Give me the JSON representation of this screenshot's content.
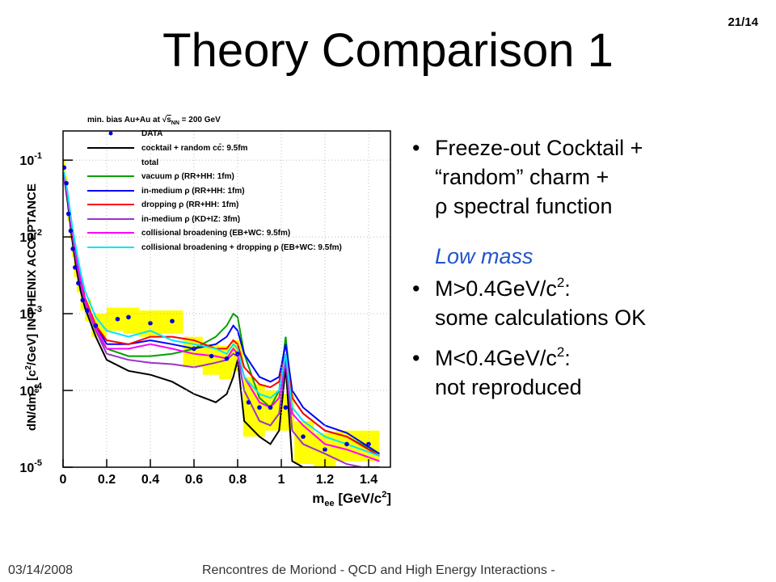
{
  "page": {
    "title": "Theory Comparison 1",
    "page_number": "21/14",
    "bullets": [
      {
        "lines": [
          [
            "Freeze-out Cocktail +"
          ],
          [
            "“random” charm +"
          ],
          [
            "ρ spectral function"
          ]
        ]
      },
      {
        "lines": [
          [
            "M>0.4GeV/c",
            "2",
            ":"
          ],
          [
            "some calculations OK"
          ]
        ]
      },
      {
        "lines": [
          [
            "M<0.4GeV/c",
            "2",
            ":"
          ],
          [
            "not reproduced"
          ]
        ]
      }
    ],
    "subheading": "Low mass",
    "footer": {
      "date": "03/14/2008",
      "event": "Rencontres de Moriond - QCD and High Energy Interactions -"
    }
  },
  "chart_data": {
    "type": "line",
    "log_y": true,
    "grid": true,
    "legend_header": [
      "min. bias Au+Au at ",
      "√",
      "s",
      "NN",
      " = 200 GeV"
    ],
    "ylabel": [
      "dN/dm",
      "ee",
      " [c",
      "2",
      "/GeV] IN PHENIX ACCEPTANCE"
    ],
    "xlabel": [
      "m",
      "ee",
      " [GeV/c",
      "2",
      "]"
    ],
    "xlim": [
      0,
      1.5
    ],
    "xticks": [
      0,
      0.2,
      0.4,
      0.6,
      0.8,
      1,
      1.2,
      1.4
    ],
    "ylim": [
      1e-05,
      0.24
    ],
    "yticks": [
      {
        "value": 1e-05,
        "label": "10",
        "exponent": "-5"
      },
      {
        "value": 0.0001,
        "label": "10",
        "exponent": "-4"
      },
      {
        "value": 0.001,
        "label": "10",
        "exponent": "-3"
      },
      {
        "value": 0.01,
        "label": "10",
        "exponent": "-2"
      },
      {
        "value": 0.1,
        "label": "10",
        "exponent": "-1"
      }
    ],
    "x": [
      0.005,
      0.02,
      0.04,
      0.06,
      0.08,
      0.1,
      0.15,
      0.2,
      0.3,
      0.4,
      0.5,
      0.6,
      0.7,
      0.75,
      0.78,
      0.8,
      0.83,
      0.9,
      0.95,
      0.99,
      1.02,
      1.05,
      1.1,
      1.2,
      1.3,
      1.45
    ],
    "series": [
      {
        "name": "DATA",
        "type": "scatter",
        "color": "#0000dd",
        "x": [
          0.005,
          0.015,
          0.025,
          0.035,
          0.045,
          0.055,
          0.07,
          0.09,
          0.11,
          0.15,
          0.25,
          0.3,
          0.4,
          0.5,
          0.6,
          0.68,
          0.75,
          0.8,
          0.85,
          0.9,
          0.95,
          1.02,
          1.1,
          1.2,
          1.3,
          1.4
        ],
        "values": [
          0.08,
          0.05,
          0.02,
          0.012,
          0.007,
          0.004,
          0.0025,
          0.0015,
          0.0011,
          0.0007,
          0.00085,
          0.0009,
          0.00075,
          0.0008,
          0.00035,
          0.00028,
          0.00026,
          0.0003,
          7e-05,
          6e-05,
          6e-05,
          6e-05,
          2.5e-05,
          1.7e-05,
          2e-05,
          2e-05
        ],
        "sys": {
          "name": "total",
          "color": "#ffff00",
          "low": [
            0.065,
            0.04,
            0.016,
            0.0095,
            0.0055,
            0.003,
            0.0019,
            0.0011,
            0.0008,
            0.0005,
            0.0006,
            0.00055,
            0.0005,
            0.00055,
            0.0002,
            0.00016,
            0.00014,
            0.00018,
            2.5e-05,
            2.5e-05,
            3e-05,
            3e-05,
            1.1e-05,
            1e-05,
            1.2e-05,
            1.2e-05
          ],
          "high": [
            0.1,
            0.062,
            0.025,
            0.015,
            0.009,
            0.0052,
            0.0033,
            0.002,
            0.0015,
            0.001,
            0.0012,
            0.0012,
            0.0011,
            0.0011,
            0.0005,
            0.0004,
            0.00038,
            0.00045,
            0.00015,
            0.00012,
            0.0001,
            9e-05,
            4e-05,
            2.8e-05,
            3e-05,
            3e-05
          ]
        }
      },
      {
        "name": "cocktail + random cc̄: 9.5fm",
        "color": "#000000",
        "values": [
          0.06,
          0.03,
          0.01,
          0.004,
          0.002,
          0.0012,
          0.0005,
          0.00025,
          0.00018,
          0.00016,
          0.00013,
          9e-05,
          7e-05,
          9e-05,
          0.00015,
          0.00025,
          4e-05,
          2.5e-05,
          2e-05,
          3e-05,
          0.0002,
          1.2e-05,
          1e-05,
          1e-05,
          1e-05,
          1e-05
        ]
      },
      {
        "name": "vacuum ρ (RR+HH: 1fm)",
        "color": "#00a000",
        "values": [
          0.06,
          0.035,
          0.012,
          0.005,
          0.0025,
          0.0014,
          0.0006,
          0.00035,
          0.00028,
          0.00028,
          0.0003,
          0.00035,
          0.0005,
          0.0007,
          0.001,
          0.0009,
          0.0003,
          8e-05,
          6e-05,
          0.0001,
          0.0005,
          8e-05,
          5e-05,
          3e-05,
          2.5e-05,
          1.5e-05
        ]
      },
      {
        "name": "in-medium ρ (RR+HH: 1fm)",
        "color": "#0000ff",
        "values": [
          0.065,
          0.036,
          0.013,
          0.006,
          0.003,
          0.0016,
          0.0007,
          0.0004,
          0.0004,
          0.00045,
          0.0004,
          0.00035,
          0.0004,
          0.0005,
          0.0007,
          0.0006,
          0.0003,
          0.00015,
          0.00013,
          0.00015,
          0.0004,
          0.0001,
          6e-05,
          3.5e-05,
          2.8e-05,
          1.5e-05
        ]
      },
      {
        "name": "dropping ρ (RR+HH: 1fm)",
        "color": "#ff0000",
        "values": [
          0.065,
          0.036,
          0.013,
          0.006,
          0.003,
          0.0016,
          0.0007,
          0.00045,
          0.0004,
          0.0005,
          0.0005,
          0.00045,
          0.00035,
          0.00035,
          0.00045,
          0.0004,
          0.0002,
          0.00012,
          0.00011,
          0.00013,
          0.0003,
          8e-05,
          5e-05,
          3e-05,
          2.5e-05,
          1.4e-05
        ]
      },
      {
        "name": "in-medium ρ (KD+IZ: 3fm)",
        "color": "#9933cc",
        "values": [
          0.06,
          0.034,
          0.012,
          0.005,
          0.0025,
          0.0014,
          0.0006,
          0.0003,
          0.00025,
          0.00023,
          0.00022,
          0.0002,
          0.00023,
          0.00025,
          0.0003,
          0.00028,
          0.0001,
          4e-05,
          3.5e-05,
          5e-05,
          0.00025,
          3e-05,
          2e-05,
          1.5e-05,
          1.1e-05,
          9e-06
        ]
      },
      {
        "name": "collisional broadening (EB+WC: 9.5fm)",
        "color": "#ff00ff",
        "values": [
          0.062,
          0.035,
          0.013,
          0.0055,
          0.0028,
          0.0015,
          0.00065,
          0.00035,
          0.00035,
          0.0004,
          0.00035,
          0.0003,
          0.00028,
          0.00026,
          0.00035,
          0.0003,
          0.00015,
          7e-05,
          6e-05,
          8e-05,
          0.0003,
          5e-05,
          3.5e-05,
          2e-05,
          1.7e-05,
          1.2e-05
        ]
      },
      {
        "name": "collisional broadening + dropping ρ (EB+WC: 9.5fm)",
        "color": "#00e5ff",
        "values": [
          0.07,
          0.04,
          0.015,
          0.007,
          0.0035,
          0.002,
          0.0009,
          0.0006,
          0.0005,
          0.0006,
          0.00045,
          0.0004,
          0.00035,
          0.0003,
          0.0004,
          0.00035,
          0.00015,
          9e-05,
          8e-05,
          0.0001,
          0.0003,
          6e-05,
          4e-05,
          2.5e-05,
          2e-05,
          1.4e-05
        ]
      }
    ]
  }
}
